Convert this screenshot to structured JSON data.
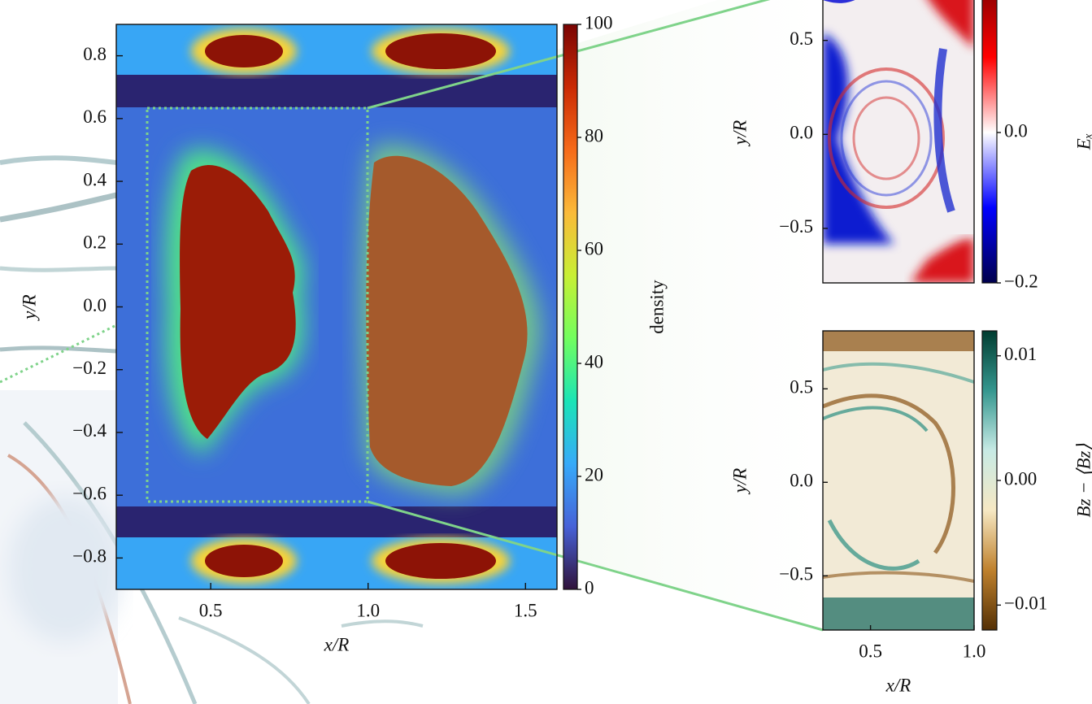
{
  "chart_data": [
    {
      "type": "heatmap",
      "xlabel": "x/R",
      "ylabel": "y/R",
      "xlim": [
        0.2,
        1.6
      ],
      "ylim": [
        -0.9,
        0.9
      ],
      "xticks": [
        0.5,
        {
          "value": 1.0,
          "label": "1.0"
        },
        1.5
      ],
      "yticks": [
        {
          "value": -0.8,
          "label": "−0.8"
        },
        {
          "value": -0.6,
          "label": "−0.6"
        },
        {
          "value": -0.4,
          "label": "−0.4"
        },
        {
          "value": -0.2,
          "label": "−0.2"
        },
        {
          "value": 0,
          "label": "0.0"
        },
        0.2,
        0.4,
        0.6,
        0.8
      ],
      "colorbar": {
        "label": "density",
        "colormap": "turbo",
        "clim": [
          0,
          100
        ],
        "ticks": [
          0,
          20,
          40,
          60,
          80,
          100
        ]
      }
    },
    {
      "type": "heatmap",
      "ylabel": "y/R",
      "xlim": [
        0.27,
        1.0
      ],
      "ylim": [
        -0.79,
        0.81
      ],
      "yticks": [
        {
          "value": -0.5,
          "label": "−0.5"
        },
        {
          "value": 0,
          "label": "0.0"
        },
        0.5
      ],
      "colorbar": {
        "label": "Eₓ",
        "colormap": "seismic",
        "clim": [
          -0.2,
          0.2
        ],
        "ticks": [
          {
            "value": -0.2,
            "label": "−0.2"
          },
          {
            "value": 0,
            "label": "0.0"
          }
        ]
      }
    },
    {
      "type": "heatmap",
      "xlabel": "x/R",
      "ylabel": "y/R",
      "xlim": [
        0.27,
        1.0
      ],
      "ylim": [
        -0.79,
        0.81
      ],
      "xticks": [
        0.5,
        {
          "value": 1.0,
          "label": "1.0"
        }
      ],
      "yticks": [
        {
          "value": -0.5,
          "label": "−0.5"
        },
        {
          "value": 0,
          "label": "0.0"
        },
        0.5
      ],
      "colorbar": {
        "label": "Bz − ⟨Bz⟩",
        "colormap": "BrBG",
        "clim": [
          -0.012,
          0.012
        ],
        "ticks": [
          {
            "value": -0.01,
            "label": "−0.01"
          },
          {
            "value": 0,
            "label": "0.00"
          },
          {
            "value": 0.01,
            "label": "0.01"
          }
        ]
      }
    }
  ]
}
